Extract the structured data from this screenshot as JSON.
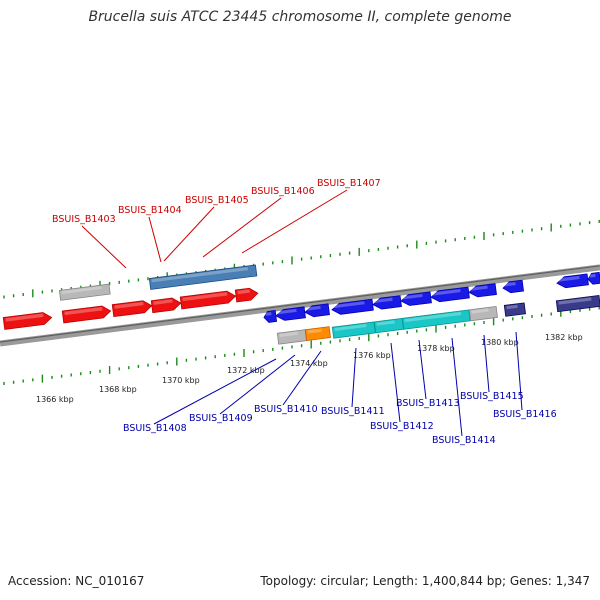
{
  "title": "Brucella suis ATCC 23445 chromosome II, complete genome",
  "footer": {
    "accession": "Accession: NC_010167",
    "summary": "Topology: circular; Length: 1,400,844 bp; Genes: 1,347"
  },
  "colors": {
    "backbone": "#7a7a7a",
    "tick": "#1a8a1a",
    "top_label": "#cc0000",
    "bottom_label": "#0000aa",
    "red_gene": "#ee1111",
    "gray_gene": "#b8b8b8",
    "steel_gene": "#4a7fb5",
    "blue_gene": "#1a1ae6",
    "orange_gene": "#ff8c00",
    "cyan_gene": "#1ac6c6",
    "navy_gene": "#3a3a8a"
  },
  "kbp_labels": [
    "1366 kbp",
    "1368 kbp",
    "1370 kbp",
    "1372 kbp",
    "1374 kbp",
    "1376 kbp",
    "1378 kbp",
    "1380 kbp",
    "1382 kbp"
  ],
  "top_genes": [
    "BSUIS_B1403",
    "BSUIS_B1404",
    "BSUIS_B1405",
    "BSUIS_B1406",
    "BSUIS_B1407"
  ],
  "bottom_genes": [
    "BSUIS_B1408",
    "BSUIS_B1409",
    "BSUIS_B1410",
    "BSUIS_B1411",
    "BSUIS_B1412",
    "BSUIS_B1413",
    "BSUIS_B1414",
    "BSUIS_B1415",
    "BSUIS_B1416"
  ]
}
